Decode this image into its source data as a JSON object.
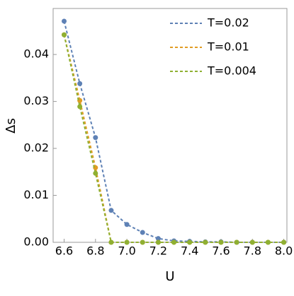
{
  "chart_data": {
    "type": "line",
    "x_label": "U",
    "y_label": "Δs",
    "x": [
      6.6,
      6.7,
      6.8,
      6.9,
      7.0,
      7.1,
      7.2,
      7.3,
      7.4,
      7.5,
      7.6,
      7.7,
      7.8,
      7.9,
      8.0
    ],
    "series": [
      {
        "name": "T=0.02",
        "color": "#5e81b5",
        "values": [
          0.0471,
          0.0338,
          0.0223,
          0.0068,
          0.0038,
          0.0021,
          0.0008,
          0.0003,
          0.0002,
          0.0001,
          0.0001,
          0,
          0,
          0,
          0
        ]
      },
      {
        "name": "T=0.01",
        "color": "#e19c24",
        "values": [
          0.0442,
          0.0302,
          0.0159,
          0,
          0,
          0,
          0,
          0,
          0,
          0,
          0,
          0,
          0,
          0,
          0
        ]
      },
      {
        "name": "T=0.004",
        "color": "#8fb032",
        "values": [
          0.0442,
          0.0289,
          0.0147,
          0,
          0,
          0,
          0,
          0,
          0,
          0,
          0,
          0,
          0,
          0,
          0
        ]
      }
    ],
    "xlim": [
      6.53,
      8.02
    ],
    "xticks": [
      6.6,
      6.8,
      {
        "value": 7,
        "label": "7.0"
      },
      7.2,
      7.4,
      7.6,
      7.8,
      {
        "value": 8,
        "label": "8.0"
      }
    ],
    "ylim": [
      0,
      0.0498
    ],
    "yticks": [
      {
        "value": 0,
        "label": "0.00"
      },
      0.01,
      0.02,
      0.03,
      0.04
    ],
    "legend": "top-right"
  }
}
